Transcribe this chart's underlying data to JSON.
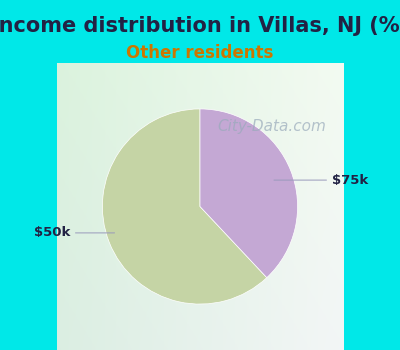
{
  "title": "Income distribution in Villas, NJ (%)",
  "subtitle": "Other residents",
  "title_fontsize": 15,
  "subtitle_fontsize": 12,
  "title_color": "#222244",
  "subtitle_color": "#cc7700",
  "background_color": "#00e8e8",
  "slices": [
    {
      "label": "$50k",
      "value": 62,
      "color": "#c5d4a5"
    },
    {
      "label": "$75k",
      "value": 38,
      "color": "#c4a8d4"
    }
  ],
  "label_color": "#222244",
  "label_fontsize": 9.5,
  "watermark": "City-Data.com",
  "watermark_color": "#99aabb",
  "watermark_fontsize": 11,
  "startangle": 90,
  "figsize": [
    4.0,
    3.5
  ],
  "dpi": 100
}
